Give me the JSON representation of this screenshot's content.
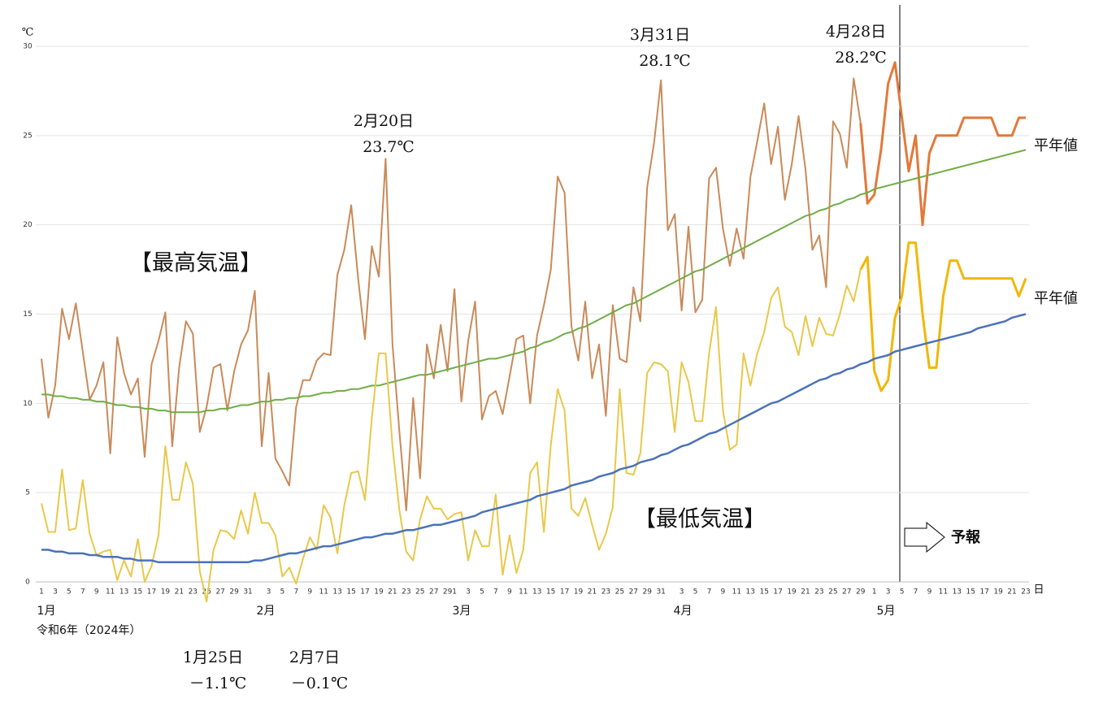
{
  "chart_data": {
    "type": "line",
    "y_unit": "℃",
    "x_unit": "日",
    "era": "令和6年（2024年）",
    "month_labels": [
      "1月",
      "2月",
      "3月",
      "4月",
      "5月"
    ],
    "section_labels": [
      "【最高気温】",
      "【最低気温】"
    ],
    "normal_labels": [
      "平年値",
      "平年値"
    ],
    "forecast_label": "予報",
    "annotations": [
      [
        "2月20日",
        "23.7℃"
      ],
      [
        "3月31日",
        "28.1℃"
      ],
      [
        "4月28日",
        "28.2℃"
      ],
      [
        "1月25日",
        "－1.1℃"
      ],
      [
        "2月7日",
        "－0.1℃"
      ]
    ],
    "categories": [
      "1",
      null,
      "3",
      null,
      "5",
      null,
      "7",
      null,
      "9",
      null,
      "11",
      null,
      "13",
      null,
      "15",
      null,
      "17",
      null,
      "19",
      null,
      "21",
      null,
      "23",
      null,
      "25",
      null,
      "27",
      null,
      "29",
      null,
      "31",
      null,
      null,
      "3",
      null,
      "5",
      null,
      "7",
      null,
      "9",
      null,
      "11",
      null,
      "13",
      null,
      "15",
      null,
      "17",
      null,
      "19",
      null,
      "21",
      null,
      "23",
      null,
      "25",
      null,
      "27",
      null,
      "29",
      "1",
      null,
      "3",
      null,
      "5",
      null,
      "7",
      null,
      "9",
      null,
      "11",
      null,
      "13",
      null,
      "15",
      null,
      "17",
      null,
      "19",
      null,
      "21",
      null,
      "23",
      null,
      "25",
      null,
      "27",
      null,
      "29",
      null,
      "31",
      null,
      null,
      "3",
      null,
      "5",
      null,
      "7",
      null,
      "9",
      null,
      "11",
      null,
      "13",
      null,
      "15",
      null,
      "17",
      null,
      "19",
      null,
      "21",
      null,
      "23",
      null,
      "25",
      null,
      "27",
      null,
      "29",
      null,
      "1",
      null,
      "3",
      null,
      "5",
      null,
      "7",
      null,
      "9",
      null,
      "11",
      null,
      "13",
      null,
      "15",
      null,
      "17",
      null,
      "19",
      null,
      "21",
      null,
      "23"
    ],
    "ylim": [
      0,
      30
    ],
    "yticks": [
      0,
      5,
      10,
      15,
      20,
      25,
      30
    ],
    "grid": true,
    "series": [
      {
        "color": "#c98a58",
        "values": [
          12.5,
          9.2,
          11,
          15.3,
          13.6,
          15.6,
          12.9,
          10.2,
          11,
          12.3,
          7.2,
          13.7,
          11.7,
          10.5,
          11.4,
          7,
          12.2,
          13.5,
          15.1,
          7.6,
          12,
          14.6,
          13.9,
          8.4,
          9.8,
          12,
          12.2,
          9.6,
          11.8,
          13.3,
          14.1,
          16.3,
          7.6,
          11.7,
          6.9,
          6.2,
          5.4,
          9.8,
          11.3,
          11.3,
          12.4,
          12.8,
          12.7,
          17.2,
          18.6,
          21.1,
          17,
          13.6,
          18.8,
          17.1,
          23.7,
          13.3,
          8.4,
          4,
          10.3,
          5.8,
          13.3,
          11.4,
          14.4,
          11.8,
          16.4,
          10.1,
          13.5,
          15.7,
          9.1,
          10.4,
          10.7,
          9.4,
          11.5,
          13.6,
          13.8,
          10,
          13.8,
          15.5,
          17.5,
          22.7,
          21.8,
          14.3,
          12.4,
          15.7,
          11.4,
          13.3,
          9.3,
          15.5,
          12.5,
          12.3,
          16.5,
          14.6,
          22.1,
          24.6,
          28.1,
          19.7,
          20.6,
          15.2,
          19.9,
          15.1,
          15.8,
          22.6,
          23.2,
          19.8,
          17.7,
          19.8,
          18.1,
          22.7,
          24.7,
          26.8,
          23.4,
          25.5,
          21.4,
          23.4,
          26.1,
          23.1,
          18.6,
          19.4,
          16.5,
          25.8,
          25.1,
          23.2,
          28.2,
          25.7,
          null,
          null,
          null,
          null,
          null,
          null,
          null,
          null,
          null,
          null,
          null,
          null,
          null,
          null,
          null,
          null,
          null,
          null,
          null,
          null,
          null,
          null,
          null,
          null
        ]
      },
      {
        "color": "#e2793a",
        "values": [
          null,
          null,
          null,
          null,
          null,
          null,
          null,
          null,
          null,
          null,
          null,
          null,
          null,
          null,
          null,
          null,
          null,
          null,
          null,
          null,
          null,
          null,
          null,
          null,
          null,
          null,
          null,
          null,
          null,
          null,
          null,
          null,
          null,
          null,
          null,
          null,
          null,
          null,
          null,
          null,
          null,
          null,
          null,
          null,
          null,
          null,
          null,
          null,
          null,
          null,
          null,
          null,
          null,
          null,
          null,
          null,
          null,
          null,
          null,
          null,
          null,
          null,
          null,
          null,
          null,
          null,
          null,
          null,
          null,
          null,
          null,
          null,
          null,
          null,
          null,
          null,
          null,
          null,
          null,
          null,
          null,
          null,
          null,
          null,
          null,
          null,
          null,
          null,
          null,
          null,
          null,
          null,
          null,
          null,
          null,
          null,
          null,
          null,
          null,
          null,
          null,
          null,
          null,
          null,
          null,
          null,
          null,
          null,
          null,
          null,
          null,
          null,
          null,
          null,
          null,
          null,
          null,
          null,
          null,
          25.7,
          21.2,
          21.7,
          24.3,
          27.9,
          29.1,
          26,
          23,
          25,
          20,
          24,
          25,
          25,
          25,
          25,
          26,
          26,
          26,
          26,
          26,
          25,
          25,
          25,
          26,
          26
        ]
      },
      {
        "color": "#70ad47",
        "values": [
          10.5,
          10.5,
          10.4,
          10.4,
          10.3,
          10.3,
          10.2,
          10.2,
          10.1,
          10.1,
          10.0,
          9.9,
          9.9,
          9.8,
          9.8,
          9.7,
          9.7,
          9.6,
          9.6,
          9.5,
          9.5,
          9.5,
          9.5,
          9.5,
          9.6,
          9.6,
          9.7,
          9.7,
          9.8,
          9.9,
          9.9,
          10.0,
          10.1,
          10.1,
          10.2,
          10.2,
          10.3,
          10.3,
          10.4,
          10.4,
          10.5,
          10.6,
          10.6,
          10.7,
          10.7,
          10.8,
          10.8,
          10.9,
          11.0,
          11.0,
          11.1,
          11.2,
          11.3,
          11.4,
          11.5,
          11.6,
          11.6,
          11.7,
          11.8,
          11.9,
          12.0,
          12.1,
          12.2,
          12.3,
          12.4,
          12.5,
          12.5,
          12.6,
          12.7,
          12.8,
          12.9,
          13.1,
          13.2,
          13.4,
          13.5,
          13.7,
          13.9,
          14.0,
          14.2,
          14.3,
          14.5,
          14.7,
          14.9,
          15.1,
          15.3,
          15.5,
          15.6,
          15.8,
          16.0,
          16.2,
          16.4,
          16.6,
          16.8,
          17.0,
          17.2,
          17.4,
          17.5,
          17.7,
          17.9,
          18.1,
          18.3,
          18.5,
          18.7,
          18.9,
          19.1,
          19.3,
          19.5,
          19.7,
          19.9,
          20.1,
          20.3,
          20.5,
          20.6,
          20.8,
          20.9,
          21.1,
          21.2,
          21.4,
          21.5,
          21.7,
          21.8,
          22.0,
          22.1,
          22.2,
          22.3,
          22.4,
          22.5,
          22.6,
          22.7,
          22.8,
          22.9,
          23.0,
          23.1,
          23.2,
          23.3,
          23.4,
          23.5,
          23.6,
          23.7,
          23.8,
          23.9,
          24.0,
          24.1,
          24.2
        ]
      },
      {
        "color": "#e8c84a",
        "values": [
          4.4,
          2.8,
          2.8,
          6.3,
          2.9,
          3,
          5.7,
          2.7,
          1.5,
          1.7,
          1.8,
          0.1,
          1.2,
          0.3,
          2.4,
          0,
          0.9,
          2.6,
          7.6,
          4.6,
          4.6,
          6.7,
          5.5,
          0.6,
          -1.1,
          1.8,
          2.9,
          2.8,
          2.4,
          4,
          2.7,
          5,
          3.3,
          3.3,
          2.6,
          0.3,
          0.8,
          -0.1,
          1.3,
          2.5,
          1.8,
          4.3,
          3.6,
          1.6,
          4.3,
          6.1,
          6.2,
          4.6,
          9.2,
          12.8,
          12.8,
          7.6,
          4,
          1.7,
          1.2,
          3.5,
          4.8,
          4.1,
          4.1,
          3.5,
          3.8,
          3.9,
          1.2,
          2.9,
          2,
          2,
          4.9,
          0.4,
          2.6,
          0.5,
          1.8,
          6.1,
          6.7,
          2.8,
          7.7,
          10.8,
          9.6,
          4.1,
          3.7,
          4.7,
          3.2,
          1.8,
          2.7,
          4.2,
          10.8,
          6.1,
          6,
          7.2,
          11.7,
          12.3,
          12.2,
          11.8,
          8.4,
          12.3,
          11.2,
          9,
          9,
          12.8,
          15.4,
          9.6,
          7.4,
          7.7,
          12.8,
          11,
          12.8,
          14,
          15.9,
          16.5,
          14.3,
          14,
          12.7,
          14.9,
          13.2,
          14.8,
          13.9,
          13.8,
          15,
          16.6,
          15.7,
          17.5,
          null,
          null,
          null,
          null,
          null,
          null,
          null,
          null,
          null,
          null,
          null,
          null,
          null,
          null,
          null,
          null,
          null,
          null,
          null,
          null,
          null,
          null,
          null,
          null
        ]
      },
      {
        "color": "#f2b705",
        "values": [
          null,
          null,
          null,
          null,
          null,
          null,
          null,
          null,
          null,
          null,
          null,
          null,
          null,
          null,
          null,
          null,
          null,
          null,
          null,
          null,
          null,
          null,
          null,
          null,
          null,
          null,
          null,
          null,
          null,
          null,
          null,
          null,
          null,
          null,
          null,
          null,
          null,
          null,
          null,
          null,
          null,
          null,
          null,
          null,
          null,
          null,
          null,
          null,
          null,
          null,
          null,
          null,
          null,
          null,
          null,
          null,
          null,
          null,
          null,
          null,
          null,
          null,
          null,
          null,
          null,
          null,
          null,
          null,
          null,
          null,
          null,
          null,
          null,
          null,
          null,
          null,
          null,
          null,
          null,
          null,
          null,
          null,
          null,
          null,
          null,
          null,
          null,
          null,
          null,
          null,
          null,
          null,
          null,
          null,
          null,
          null,
          null,
          null,
          null,
          null,
          null,
          null,
          null,
          null,
          null,
          null,
          null,
          null,
          null,
          null,
          null,
          null,
          null,
          null,
          null,
          null,
          null,
          null,
          null,
          17.5,
          18.2,
          11.8,
          10.7,
          11.3,
          14.8,
          16,
          19,
          19,
          15,
          12,
          12,
          16,
          18,
          18,
          17,
          17,
          17,
          17,
          17,
          17,
          17,
          17,
          16,
          17
        ]
      },
      {
        "color": "#4a72b8",
        "values": [
          1.8,
          1.8,
          1.7,
          1.7,
          1.6,
          1.6,
          1.6,
          1.5,
          1.5,
          1.4,
          1.4,
          1.4,
          1.3,
          1.3,
          1.2,
          1.2,
          1.2,
          1.1,
          1.1,
          1.1,
          1.1,
          1.1,
          1.1,
          1.1,
          1.1,
          1.1,
          1.1,
          1.1,
          1.1,
          1.1,
          1.1,
          1.2,
          1.2,
          1.3,
          1.4,
          1.5,
          1.6,
          1.6,
          1.7,
          1.8,
          1.9,
          2.0,
          2.0,
          2.1,
          2.2,
          2.3,
          2.4,
          2.5,
          2.5,
          2.6,
          2.7,
          2.7,
          2.8,
          2.9,
          2.9,
          3.0,
          3.1,
          3.2,
          3.2,
          3.3,
          3.4,
          3.5,
          3.6,
          3.7,
          3.9,
          4.0,
          4.1,
          4.2,
          4.3,
          4.4,
          4.5,
          4.6,
          4.8,
          4.9,
          5.0,
          5.1,
          5.2,
          5.4,
          5.5,
          5.6,
          5.7,
          5.9,
          6.0,
          6.1,
          6.3,
          6.4,
          6.5,
          6.7,
          6.8,
          6.9,
          7.1,
          7.2,
          7.4,
          7.6,
          7.7,
          7.9,
          8.1,
          8.3,
          8.4,
          8.6,
          8.8,
          9.0,
          9.2,
          9.4,
          9.6,
          9.8,
          10.0,
          10.1,
          10.3,
          10.5,
          10.7,
          10.9,
          11.1,
          11.3,
          11.4,
          11.6,
          11.7,
          11.9,
          12.0,
          12.2,
          12.3,
          12.5,
          12.6,
          12.7,
          12.9,
          13.0,
          13.1,
          13.2,
          13.3,
          13.4,
          13.5,
          13.6,
          13.7,
          13.8,
          13.9,
          14.0,
          14.2,
          14.3,
          14.4,
          14.5,
          14.6,
          14.8,
          14.9,
          15.0
        ]
      }
    ]
  }
}
